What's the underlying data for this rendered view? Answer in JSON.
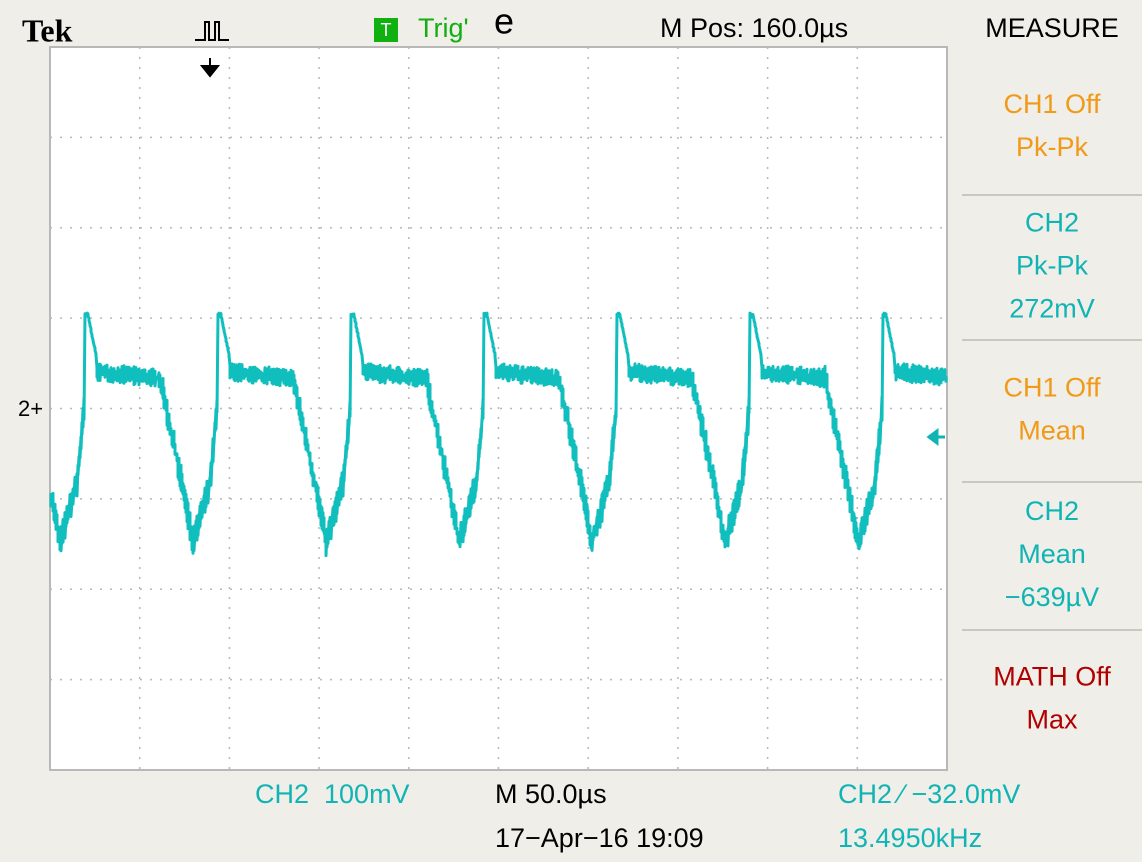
{
  "header": {
    "brand": "Tek",
    "trigger_icon": "T",
    "trigger_status": "Trig'",
    "trigger_glitch": "e",
    "position": "M Pos: 160.0µs",
    "menu": "MEASURE"
  },
  "channel_marker": "2+",
  "measurements": [
    {
      "lines": [
        "CH1 Off",
        "Pk-Pk"
      ],
      "color": "#f09a18"
    },
    {
      "lines": [
        "CH2",
        "Pk-Pk",
        "272mV"
      ],
      "color": "#10b4b4"
    },
    {
      "lines": [
        "CH1 Off",
        "Mean"
      ],
      "color": "#f09a18"
    },
    {
      "lines": [
        "CH2",
        "Mean",
        "−639µV"
      ],
      "color": "#10b4b4"
    },
    {
      "lines": [
        "MATH Off",
        "Max"
      ],
      "color": "#b00000"
    }
  ],
  "footer": {
    "ch2_scale": "CH2  100mV",
    "timebase": "M 50.0µs",
    "trigger": "CH2 ∕ −32.0mV",
    "datetime": "17−Apr−16 19:09",
    "frequency": "13.4950kHz"
  }
}
